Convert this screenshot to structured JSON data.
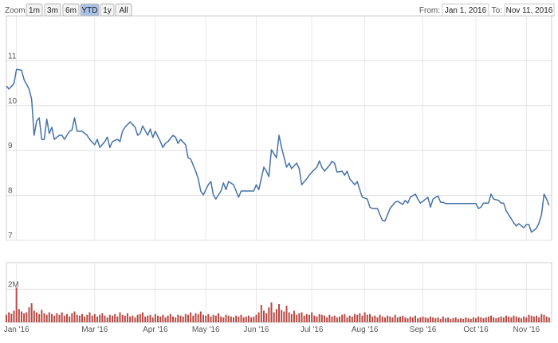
{
  "range_selector": {
    "label": "Zoom",
    "buttons": [
      "1m",
      "3m",
      "6m",
      "YTD",
      "1y",
      "All"
    ],
    "selected": 3,
    "from_label": "From:",
    "from": "Jan 1, 2016",
    "to_label": "To:",
    "to": "Nov 11, 2016"
  },
  "chart_data": [
    {
      "type": "line",
      "xlim": [
        0,
        216
      ],
      "ylim": [
        7,
        12
      ],
      "yticks": [
        7,
        8,
        9,
        10,
        11
      ],
      "grid": true,
      "xticks": [
        {
          "value": 4,
          "label": "Jan '16"
        },
        {
          "value": 35,
          "label": "Mar '16"
        },
        {
          "value": 59,
          "label": "Apr '16"
        },
        {
          "value": 79,
          "label": "May '16"
        },
        {
          "value": 99,
          "label": "Jun '16"
        },
        {
          "value": 121,
          "label": "Jul '16"
        },
        {
          "value": 142,
          "label": "Aug '16"
        },
        {
          "value": 165,
          "label": "Sep '16"
        },
        {
          "value": 186,
          "label": "Oct '16"
        },
        {
          "value": 206,
          "label": "Nov '16"
        }
      ],
      "x": [
        0,
        1,
        3,
        4,
        6,
        7,
        9,
        10,
        11,
        12,
        13,
        14,
        15,
        16,
        17,
        18,
        19,
        21,
        22,
        23,
        25,
        26,
        27,
        28,
        29,
        30,
        32,
        33,
        35,
        36,
        37,
        39,
        40,
        41,
        42,
        44,
        45,
        46,
        47,
        49,
        51,
        52,
        53,
        54,
        56,
        57,
        58,
        59,
        61,
        62,
        63,
        64,
        66,
        67,
        68,
        69,
        71,
        72,
        73,
        75,
        76,
        77,
        78,
        80,
        81,
        82,
        83,
        85,
        86,
        87,
        88,
        90,
        91,
        92,
        93,
        95,
        97,
        98,
        99,
        100,
        102,
        103,
        104,
        105,
        107,
        108,
        109,
        111,
        112,
        113,
        115,
        116,
        117,
        119,
        120,
        121,
        123,
        124,
        125,
        126,
        128,
        129,
        130,
        131,
        133,
        134,
        135,
        136,
        138,
        139,
        140,
        141,
        143,
        144,
        145,
        147,
        148,
        149,
        150,
        152,
        153,
        154,
        155,
        157,
        158,
        159,
        160,
        162,
        163,
        164,
        165,
        167,
        168,
        169,
        171,
        172,
        173,
        174,
        177,
        181,
        184,
        186,
        187,
        188,
        189,
        191,
        192,
        193,
        195,
        196,
        197,
        198,
        200,
        201,
        202,
        203,
        205,
        206,
        207,
        208,
        210,
        211,
        212,
        213,
        214,
        215
      ],
      "series": [
        {
          "color": "#4572a7",
          "values": [
            10.44,
            10.37,
            10.49,
            10.81,
            10.79,
            10.58,
            10.37,
            10.14,
            9.34,
            9.66,
            9.73,
            9.25,
            9.25,
            9.7,
            9.38,
            9.52,
            9.25,
            9.34,
            9.34,
            9.25,
            9.43,
            9.46,
            9.73,
            9.43,
            9.43,
            9.43,
            9.34,
            9.25,
            9.13,
            9.25,
            9.07,
            9.2,
            9.3,
            9.07,
            9.2,
            9.25,
            9.2,
            9.43,
            9.52,
            9.64,
            9.52,
            9.34,
            9.38,
            9.55,
            9.34,
            9.48,
            9.29,
            9.43,
            9.2,
            9.07,
            9.16,
            9.2,
            9.34,
            9.3,
            9.16,
            9.25,
            9.13,
            8.84,
            8.81,
            8.54,
            8.37,
            8.1,
            8.01,
            8.24,
            8.31,
            8.01,
            7.92,
            8.1,
            8.28,
            8.13,
            8.31,
            8.24,
            8.1,
            7.96,
            8.1,
            8.1,
            8.1,
            8.1,
            8.24,
            8.13,
            8.63,
            8.54,
            8.42,
            9.02,
            8.84,
            9.34,
            9.07,
            8.63,
            8.72,
            8.6,
            8.72,
            8.6,
            8.24,
            8.37,
            8.45,
            8.52,
            8.63,
            8.77,
            8.63,
            8.54,
            8.67,
            8.76,
            8.72,
            8.52,
            8.54,
            8.45,
            8.54,
            8.37,
            8.24,
            8.31,
            8.13,
            7.96,
            7.92,
            7.74,
            7.71,
            7.71,
            7.57,
            7.44,
            7.43,
            7.71,
            7.78,
            7.85,
            7.87,
            7.8,
            7.89,
            7.83,
            7.96,
            8.03,
            7.92,
            7.83,
            7.87,
            7.96,
            7.74,
            7.92,
            7.99,
            7.85,
            7.85,
            7.82,
            7.82,
            7.82,
            7.82,
            7.82,
            7.71,
            7.74,
            7.83,
            7.83,
            8.03,
            7.92,
            7.89,
            7.83,
            7.83,
            7.66,
            7.48,
            7.39,
            7.32,
            7.37,
            7.28,
            7.35,
            7.35,
            7.18,
            7.27,
            7.39,
            7.57,
            8.03,
            7.92,
            7.78
          ]
        }
      ]
    },
    {
      "type": "bar",
      "color": "#b84a44",
      "ylim": [
        0,
        3.6
      ],
      "yticks": [
        {
          "value": 2,
          "label": "2M"
        }
      ],
      "values": [
        0.45,
        0.6,
        0.52,
        0.7,
        2.1,
        0.8,
        0.65,
        0.55,
        0.6,
        0.9,
        1.15,
        0.7,
        0.6,
        0.5,
        0.75,
        0.55,
        0.45,
        0.6,
        0.5,
        0.4,
        0.55,
        0.45,
        0.6,
        0.4,
        0.5,
        0.35,
        0.55,
        0.65,
        0.45,
        0.4,
        0.5,
        0.35,
        0.45,
        0.6,
        0.4,
        0.5,
        0.35,
        0.45,
        0.55,
        0.4,
        0.3,
        0.45,
        0.4,
        0.5,
        0.35,
        0.6,
        0.45,
        0.4,
        0.55,
        0.35,
        0.4,
        0.3,
        0.45,
        0.5,
        0.6,
        0.35,
        0.4,
        0.45,
        0.3,
        0.5,
        0.4,
        0.35,
        0.45,
        0.3,
        0.4,
        0.5,
        0.35,
        0.3,
        0.45,
        0.4,
        0.35,
        0.5,
        0.45,
        0.6,
        0.4,
        0.55,
        0.5,
        0.65,
        0.45,
        0.4,
        0.5,
        0.35,
        0.45,
        0.4,
        0.55,
        0.35,
        0.3,
        0.45,
        0.4,
        0.35,
        0.3,
        0.4,
        0.35,
        0.45,
        0.3,
        0.35,
        0.4,
        0.3,
        0.35,
        0.45,
        0.6,
        1.05,
        0.7,
        0.55,
        0.9,
        1.2,
        0.6,
        0.8,
        1.1,
        0.75,
        0.65,
        1.0,
        0.6,
        0.5,
        0.7,
        0.45,
        0.55,
        0.6,
        0.4,
        0.5,
        0.45,
        0.6,
        0.4,
        0.35,
        0.5,
        0.45,
        0.4,
        0.3,
        0.45,
        0.35,
        0.4,
        0.3,
        0.35,
        0.45,
        0.5,
        0.3,
        0.4,
        0.35,
        0.5,
        0.45,
        0.55,
        0.4,
        0.6,
        0.45,
        0.5,
        0.35,
        0.4,
        0.3,
        0.45,
        0.35,
        0.3,
        0.4,
        0.35,
        0.3,
        0.45,
        0.3,
        0.35,
        0.4,
        0.3,
        0.25,
        0.35,
        0.3,
        0.4,
        0.25,
        0.3,
        0.35,
        0.3,
        0.25,
        0.35,
        0.3,
        0.25,
        0.3,
        0.2,
        0.35,
        0.25,
        0.3,
        0.2,
        0.25,
        0.3,
        0.2,
        0.25,
        0.2,
        0.3,
        0.25,
        0.2,
        0.3,
        0.25,
        0.35,
        0.3,
        0.25,
        0.3,
        0.35,
        0.4,
        0.3,
        0.25,
        0.3,
        0.35,
        0.3,
        0.4,
        0.35,
        0.3,
        0.4,
        0.35,
        0.3,
        0.25,
        0.35,
        0.3,
        0.45,
        0.4,
        0.35,
        0.4,
        0.3,
        0.5,
        0.45,
        0.35,
        0.3
      ]
    }
  ]
}
